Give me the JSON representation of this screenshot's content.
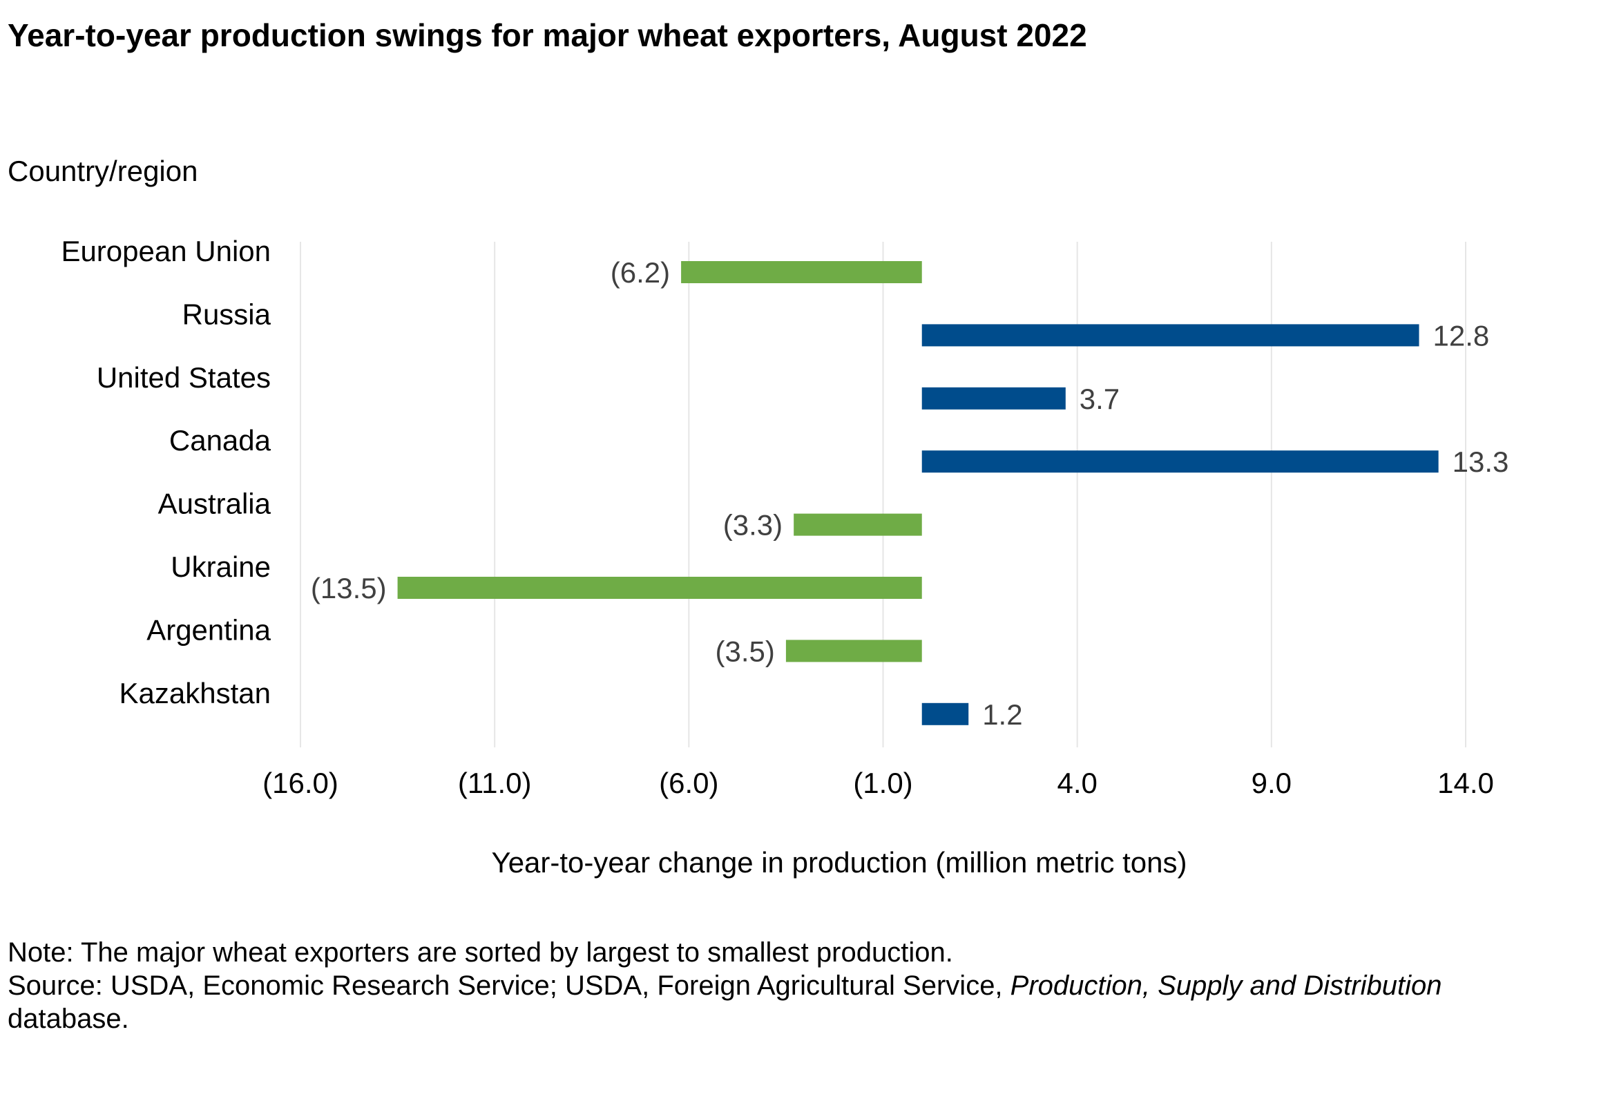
{
  "title": "Year-to-year production swings for major wheat exporters, August 2022",
  "subtitle": "Country/region",
  "notes": {
    "line1": "Note: The major wheat exporters are sorted by largest to smallest production.",
    "line2_prefix": "Source: USDA, Economic Research Service; USDA, Foreign Agricultural Service, ",
    "line2_italic": "Production, Supply and Distribution",
    "line3": "database."
  },
  "chart_data": {
    "type": "bar",
    "orientation": "horizontal",
    "title": "Year-to-year production swings for major wheat exporters, August 2022",
    "ylabel": "Country/region",
    "xlabel": "Year-to-year change in production (million metric tons)",
    "categories": [
      "European Union",
      "Russia",
      "United States",
      "Canada",
      "Australia",
      "Ukraine",
      "Argentina",
      "Kazakhstan"
    ],
    "values": [
      -6.2,
      12.8,
      3.7,
      13.3,
      -3.3,
      -13.5,
      -3.5,
      1.2
    ],
    "value_labels": [
      "(6.2)",
      "12.8",
      "3.7",
      "13.3",
      "(3.3)",
      "(13.5)",
      "(3.5)",
      "1.2"
    ],
    "xlim": [
      -16.0,
      14.0
    ],
    "xticks": [
      -16,
      -11,
      -6,
      -1,
      4,
      9,
      14
    ],
    "xtick_labels": [
      "(16.0)",
      "(11.0)",
      "(6.0)",
      "(1.0)",
      "4.0",
      "9.0",
      "14.0"
    ],
    "colors": {
      "positive": "#004C8C",
      "negative": "#6FAC46"
    },
    "grid": true,
    "legend": "none"
  }
}
